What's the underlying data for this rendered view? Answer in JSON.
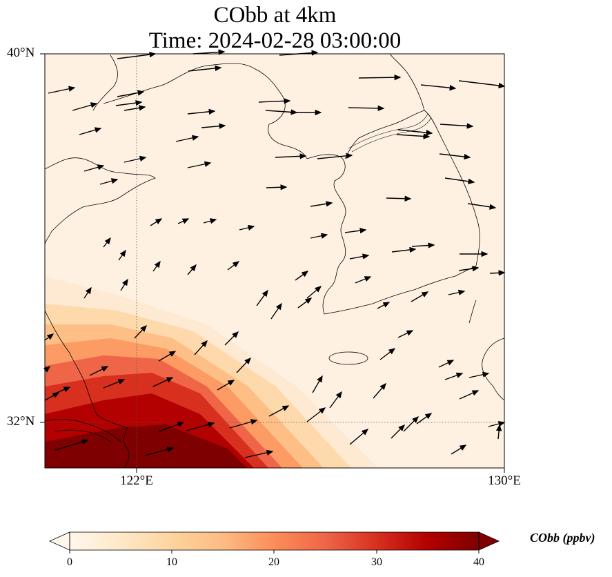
{
  "title": {
    "line1": "CObb at 4km",
    "line2": "Time: 2024-02-28 03:00:00"
  },
  "axes": {
    "lat_labels": [
      "40°N",
      "32°N"
    ],
    "lon_labels": [
      "122°E",
      "130°E"
    ],
    "lon_range": [
      120,
      130
    ],
    "lat_range": [
      31,
      40
    ],
    "gridlines": "dotted at 122°E and 32°N"
  },
  "colorbar": {
    "label": "CObb (ppbv)",
    "ticks": [
      "0",
      "10",
      "20",
      "30",
      "40"
    ],
    "range": [
      0,
      40
    ],
    "colormap": "OrRd",
    "extend": "both",
    "colors": [
      "#fff7ec",
      "#fee8c8",
      "#fdd49e",
      "#fdbb84",
      "#fc8d59",
      "#ef6548",
      "#d7301f",
      "#b30000",
      "#7f0000"
    ]
  },
  "map_content": {
    "field": "CObb concentration",
    "high_region": "southwest corner near 120–124°E, 31–33°N, values 30–40+ ppbv",
    "background": "near 0 ppbv elsewhere",
    "overlay": "wind vectors (black arrows), mostly westerly/southwesterly"
  }
}
